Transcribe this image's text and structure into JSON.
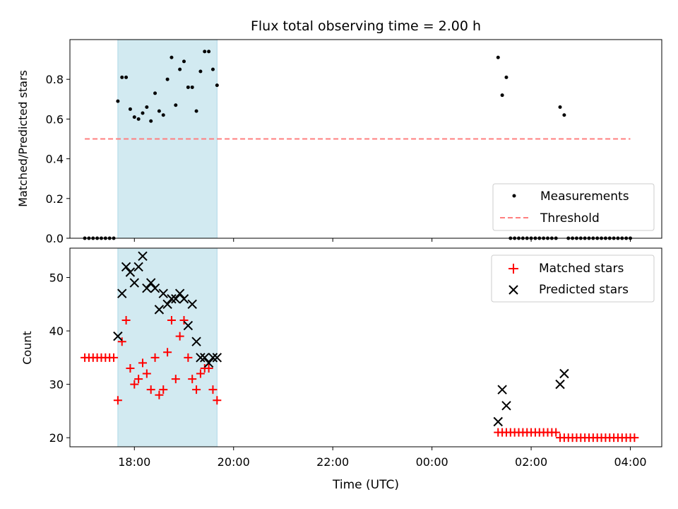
{
  "chart_data": [
    {
      "type": "scatter",
      "title": "Flux total observing time = 2.00 h",
      "xlabel": "",
      "ylabel": "Matched/Predicted stars",
      "xlim": [
        "2024-01-01T16:42",
        "2024-01-02T04:38"
      ],
      "ylim": [
        0,
        1.0
      ],
      "yticks": [
        "0.0",
        "0.2",
        "0.4",
        "0.6",
        "0.8"
      ],
      "highlight_span": {
        "start": "2024-01-01T17:40",
        "end": "2024-01-01T19:40",
        "color": "#add8e6"
      },
      "threshold": {
        "value": 0.5,
        "from": "2024-01-01T17:00",
        "to": "2024-01-02T04:00",
        "color": "#ff7f7f"
      },
      "legend": {
        "position": "lower-right",
        "entries": [
          "Measurements",
          "Threshold"
        ]
      },
      "series": [
        {
          "name": "Measurements",
          "color": "#000000",
          "x": [
            "2024-01-01T17:00",
            "2024-01-01T17:05",
            "2024-01-01T17:10",
            "2024-01-01T17:15",
            "2024-01-01T17:20",
            "2024-01-01T17:25",
            "2024-01-01T17:30",
            "2024-01-01T17:35",
            "2024-01-01T17:40",
            "2024-01-01T17:45",
            "2024-01-01T17:50",
            "2024-01-01T17:55",
            "2024-01-01T18:00",
            "2024-01-01T18:05",
            "2024-01-01T18:10",
            "2024-01-01T18:15",
            "2024-01-01T18:20",
            "2024-01-01T18:25",
            "2024-01-01T18:30",
            "2024-01-01T18:35",
            "2024-01-01T18:40",
            "2024-01-01T18:45",
            "2024-01-01T18:50",
            "2024-01-01T18:55",
            "2024-01-01T19:00",
            "2024-01-01T19:05",
            "2024-01-01T19:10",
            "2024-01-01T19:15",
            "2024-01-01T19:20",
            "2024-01-01T19:25",
            "2024-01-01T19:30",
            "2024-01-01T19:35",
            "2024-01-01T19:40",
            "2024-01-02T01:20",
            "2024-01-02T01:25",
            "2024-01-02T01:30",
            "2024-01-02T01:35",
            "2024-01-02T01:40",
            "2024-01-02T01:45",
            "2024-01-02T01:50",
            "2024-01-02T01:55",
            "2024-01-02T02:00",
            "2024-01-02T02:05",
            "2024-01-02T02:10",
            "2024-01-02T02:15",
            "2024-01-02T02:20",
            "2024-01-02T02:25",
            "2024-01-02T02:30",
            "2024-01-02T02:35",
            "2024-01-02T02:40",
            "2024-01-02T02:45",
            "2024-01-02T02:50",
            "2024-01-02T02:55",
            "2024-01-02T03:00",
            "2024-01-02T03:05",
            "2024-01-02T03:10",
            "2024-01-02T03:15",
            "2024-01-02T03:20",
            "2024-01-02T03:25",
            "2024-01-02T03:30",
            "2024-01-02T03:35",
            "2024-01-02T03:40",
            "2024-01-02T03:45",
            "2024-01-02T03:50",
            "2024-01-02T03:55",
            "2024-01-02T04:00"
          ],
          "y": [
            0,
            0,
            0,
            0,
            0,
            0,
            0,
            0,
            0.69,
            0.81,
            0.81,
            0.65,
            0.61,
            0.6,
            0.63,
            0.66,
            0.59,
            0.73,
            0.64,
            0.62,
            0.8,
            0.91,
            0.67,
            0.85,
            0.89,
            0.76,
            0.76,
            0.64,
            0.84,
            0.94,
            0.94,
            0.85,
            0.77,
            0.91,
            0.72,
            0.81,
            0,
            0,
            0,
            0,
            0,
            0,
            0,
            0,
            0,
            0,
            0,
            0,
            0.66,
            0.62,
            0,
            0,
            0,
            0,
            0,
            0,
            0,
            0,
            0,
            0,
            0,
            0,
            0,
            0,
            0,
            0
          ]
        }
      ]
    },
    {
      "type": "scatter",
      "title": "",
      "xlabel": "Time (UTC)",
      "ylabel": "Count",
      "xlim": [
        "2024-01-01T16:42",
        "2024-01-02T04:38"
      ],
      "ylim": [
        18.3,
        55.5
      ],
      "yticks": [
        "20",
        "30",
        "40",
        "50"
      ],
      "xticks": [
        "18:00",
        "20:00",
        "22:00",
        "00:00",
        "02:00",
        "04:00"
      ],
      "highlight_span": {
        "start": "2024-01-01T17:40",
        "end": "2024-01-01T19:40",
        "color": "#add8e6"
      },
      "legend": {
        "position": "top-right",
        "entries": [
          "Matched stars",
          "Predicted stars"
        ]
      },
      "series": [
        {
          "name": "Matched stars",
          "color": "#ff0000",
          "marker": "+",
          "x": [
            "2024-01-01T17:00",
            "2024-01-01T17:05",
            "2024-01-01T17:10",
            "2024-01-01T17:15",
            "2024-01-01T17:20",
            "2024-01-01T17:25",
            "2024-01-01T17:30",
            "2024-01-01T17:35",
            "2024-01-01T17:40",
            "2024-01-01T17:45",
            "2024-01-01T17:50",
            "2024-01-01T17:55",
            "2024-01-01T18:00",
            "2024-01-01T18:05",
            "2024-01-01T18:10",
            "2024-01-01T18:15",
            "2024-01-01T18:20",
            "2024-01-01T18:25",
            "2024-01-01T18:30",
            "2024-01-01T18:35",
            "2024-01-01T18:40",
            "2024-01-01T18:45",
            "2024-01-01T18:50",
            "2024-01-01T18:55",
            "2024-01-01T19:00",
            "2024-01-01T19:05",
            "2024-01-01T19:10",
            "2024-01-01T19:15",
            "2024-01-01T19:20",
            "2024-01-01T19:25",
            "2024-01-01T19:30",
            "2024-01-01T19:35",
            "2024-01-01T19:40",
            "2024-01-02T01:20",
            "2024-01-02T01:25",
            "2024-01-02T01:30",
            "2024-01-02T01:35",
            "2024-01-02T01:40",
            "2024-01-02T01:45",
            "2024-01-02T01:50",
            "2024-01-02T01:55",
            "2024-01-02T02:00",
            "2024-01-02T02:05",
            "2024-01-02T02:10",
            "2024-01-02T02:15",
            "2024-01-02T02:20",
            "2024-01-02T02:25",
            "2024-01-02T02:30",
            "2024-01-02T02:35",
            "2024-01-02T02:40",
            "2024-01-02T02:45",
            "2024-01-02T02:50",
            "2024-01-02T02:55",
            "2024-01-02T03:00",
            "2024-01-02T03:05",
            "2024-01-02T03:10",
            "2024-01-02T03:15",
            "2024-01-02T03:20",
            "2024-01-02T03:25",
            "2024-01-02T03:30",
            "2024-01-02T03:35",
            "2024-01-02T03:40",
            "2024-01-02T03:45",
            "2024-01-02T03:50",
            "2024-01-02T03:55",
            "2024-01-02T04:00",
            "2024-01-02T04:05"
          ],
          "y": [
            35,
            35,
            35,
            35,
            35,
            35,
            35,
            35,
            27,
            38,
            42,
            33,
            30,
            31,
            34,
            32,
            29,
            35,
            28,
            29,
            36,
            42,
            31,
            39,
            42,
            35,
            31,
            29,
            32,
            33,
            33,
            29,
            27,
            21,
            21,
            21,
            21,
            21,
            21,
            21,
            21,
            21,
            21,
            21,
            21,
            21,
            21,
            21,
            20,
            20,
            20,
            20,
            20,
            20,
            20,
            20,
            20,
            20,
            20,
            20,
            20,
            20,
            20,
            20,
            20,
            20,
            20
          ]
        },
        {
          "name": "Predicted stars",
          "color": "#000000",
          "marker": "x",
          "x": [
            "2024-01-01T17:40",
            "2024-01-01T17:45",
            "2024-01-01T17:50",
            "2024-01-01T17:55",
            "2024-01-01T18:00",
            "2024-01-01T18:05",
            "2024-01-01T18:10",
            "2024-01-01T18:15",
            "2024-01-01T18:20",
            "2024-01-01T18:25",
            "2024-01-01T18:30",
            "2024-01-01T18:35",
            "2024-01-01T18:40",
            "2024-01-01T18:45",
            "2024-01-01T18:50",
            "2024-01-01T18:55",
            "2024-01-01T19:00",
            "2024-01-01T19:05",
            "2024-01-01T19:10",
            "2024-01-01T19:15",
            "2024-01-01T19:20",
            "2024-01-01T19:25",
            "2024-01-01T19:30",
            "2024-01-01T19:35",
            "2024-01-01T19:40",
            "2024-01-02T01:20",
            "2024-01-02T01:25",
            "2024-01-02T01:30",
            "2024-01-02T02:35",
            "2024-01-02T02:40"
          ],
          "y": [
            39,
            47,
            52,
            51,
            49,
            52,
            54,
            48,
            49,
            48,
            44,
            47,
            45,
            46,
            46,
            47,
            46,
            41,
            45,
            38,
            35,
            35,
            34,
            35,
            35,
            23,
            29,
            26,
            30,
            32
          ]
        }
      ]
    }
  ]
}
